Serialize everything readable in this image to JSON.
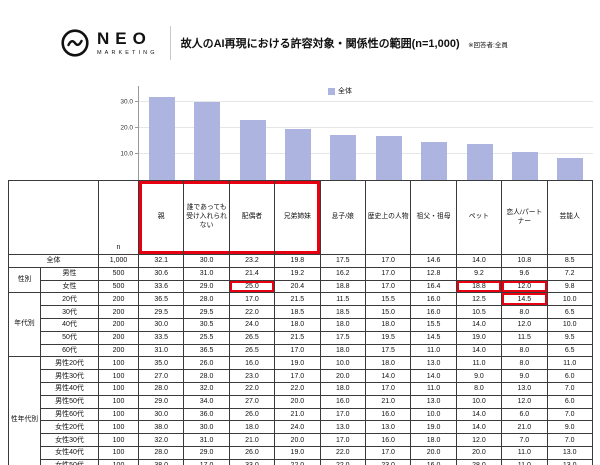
{
  "header": {
    "logo_main": "NEO",
    "logo_sub": "MARKETING",
    "title": "故人のAI再現における許容対象・関係性の範囲(n=1,000)",
    "note": "※回答者:全員"
  },
  "chart_data": {
    "type": "bar",
    "title": "故人のAI再現における許容対象・関係性の範囲(n=1,000)",
    "legend": "全体",
    "legend_position": "top",
    "bar_color": "#aeb4e0",
    "categories": [
      "親",
      "誰であっても受け入れられない",
      "配偶者",
      "兄弟姉妹",
      "息子/娘",
      "歴史上の人物",
      "祖父・祖母",
      "ペット",
      "恋人/パートナー",
      "芸能人"
    ],
    "values": [
      32.1,
      30.0,
      23.2,
      19.8,
      17.5,
      17.0,
      14.6,
      14.0,
      10.8,
      8.5
    ],
    "xlabel": "",
    "ylabel": "",
    "ylim": [
      0,
      35
    ],
    "yticks": [
      "10.0",
      "20.0",
      "30.0"
    ],
    "ytick_values": [
      10,
      20,
      30
    ],
    "grid": true
  },
  "table": {
    "n_label": "n",
    "col_headers": [
      "親",
      "誰であっても受け入れられない",
      "配偶者",
      "兄弟姉妹",
      "息子/娘",
      "歴史上の人物",
      "祖父・祖母",
      "ペット",
      "恋人/パートナー",
      "芸能人"
    ],
    "header_highlight": {
      "from": 0,
      "to": 3
    },
    "rows": [
      {
        "label": "全体",
        "colspan2": true,
        "n": "1,000",
        "values": [
          "32.1",
          "30.0",
          "23.2",
          "19.8",
          "17.5",
          "17.0",
          "14.6",
          "14.0",
          "10.8",
          "8.5"
        ]
      },
      {
        "group": "性別",
        "group_span": 2,
        "label": "男性",
        "n": "500",
        "values": [
          "30.6",
          "31.0",
          "21.4",
          "19.2",
          "16.2",
          "17.0",
          "12.8",
          "9.2",
          "9.6",
          "7.2"
        ]
      },
      {
        "label": "女性",
        "n": "500",
        "values": [
          "33.6",
          "29.0",
          "25.0",
          "20.4",
          "18.8",
          "17.0",
          "16.4",
          "18.8",
          "12.0",
          "9.8"
        ],
        "highlights": [
          2,
          7,
          8
        ]
      },
      {
        "group": "年代別",
        "group_span": 5,
        "label": "20代",
        "n": "200",
        "values": [
          "36.5",
          "28.0",
          "17.0",
          "21.5",
          "11.5",
          "15.5",
          "16.0",
          "12.5",
          "14.5",
          "10.0"
        ],
        "highlights": [
          8
        ]
      },
      {
        "label": "30代",
        "n": "200",
        "values": [
          "29.5",
          "29.5",
          "22.0",
          "18.5",
          "18.5",
          "15.0",
          "16.0",
          "10.5",
          "8.0",
          "6.5"
        ]
      },
      {
        "label": "40代",
        "n": "200",
        "values": [
          "30.0",
          "30.5",
          "24.0",
          "18.0",
          "18.0",
          "18.0",
          "15.5",
          "14.0",
          "12.0",
          "10.0"
        ]
      },
      {
        "label": "50代",
        "n": "200",
        "values": [
          "33.5",
          "25.5",
          "26.5",
          "21.5",
          "17.5",
          "19.5",
          "14.5",
          "19.0",
          "11.5",
          "9.5"
        ]
      },
      {
        "label": "60代",
        "n": "200",
        "values": [
          "31.0",
          "36.5",
          "26.5",
          "17.0",
          "18.0",
          "17.5",
          "11.0",
          "14.0",
          "8.0",
          "6.5"
        ]
      },
      {
        "group": "性年代別",
        "group_span": 10,
        "label": "男性20代",
        "n": "100",
        "values": [
          "35.0",
          "26.0",
          "16.0",
          "19.0",
          "10.0",
          "18.0",
          "13.0",
          "11.0",
          "8.0",
          "11.0"
        ]
      },
      {
        "label": "男性30代",
        "n": "100",
        "values": [
          "27.0",
          "28.0",
          "23.0",
          "17.0",
          "20.0",
          "14.0",
          "14.0",
          "9.0",
          "9.0",
          "6.0"
        ]
      },
      {
        "label": "男性40代",
        "n": "100",
        "values": [
          "28.0",
          "32.0",
          "22.0",
          "22.0",
          "18.0",
          "17.0",
          "11.0",
          "8.0",
          "13.0",
          "7.0"
        ]
      },
      {
        "label": "男性50代",
        "n": "100",
        "values": [
          "29.0",
          "34.0",
          "27.0",
          "20.0",
          "16.0",
          "21.0",
          "13.0",
          "10.0",
          "12.0",
          "6.0"
        ]
      },
      {
        "label": "男性60代",
        "n": "100",
        "values": [
          "30.0",
          "36.0",
          "26.0",
          "21.0",
          "17.0",
          "16.0",
          "10.0",
          "14.0",
          "6.0",
          "7.0"
        ]
      },
      {
        "label": "女性20代",
        "n": "100",
        "values": [
          "38.0",
          "30.0",
          "18.0",
          "24.0",
          "13.0",
          "13.0",
          "19.0",
          "14.0",
          "21.0",
          "9.0"
        ]
      },
      {
        "label": "女性30代",
        "n": "100",
        "values": [
          "32.0",
          "31.0",
          "21.0",
          "20.0",
          "17.0",
          "16.0",
          "18.0",
          "12.0",
          "7.0",
          "7.0"
        ]
      },
      {
        "label": "女性40代",
        "n": "100",
        "values": [
          "28.0",
          "29.0",
          "26.0",
          "19.0",
          "22.0",
          "17.0",
          "20.0",
          "20.0",
          "11.0",
          "13.0"
        ]
      },
      {
        "label": "女性50代",
        "n": "100",
        "values": [
          "38.0",
          "17.0",
          "33.0",
          "22.0",
          "22.0",
          "23.0",
          "16.0",
          "28.0",
          "11.0",
          "13.0"
        ]
      },
      {
        "label": "女性60代",
        "n": "100",
        "values": [
          "32.0",
          "39.0",
          "27.0",
          "16.0",
          "19.0",
          "17.0",
          "14.0",
          "18.0",
          "8.0",
          "6.0"
        ]
      }
    ]
  }
}
